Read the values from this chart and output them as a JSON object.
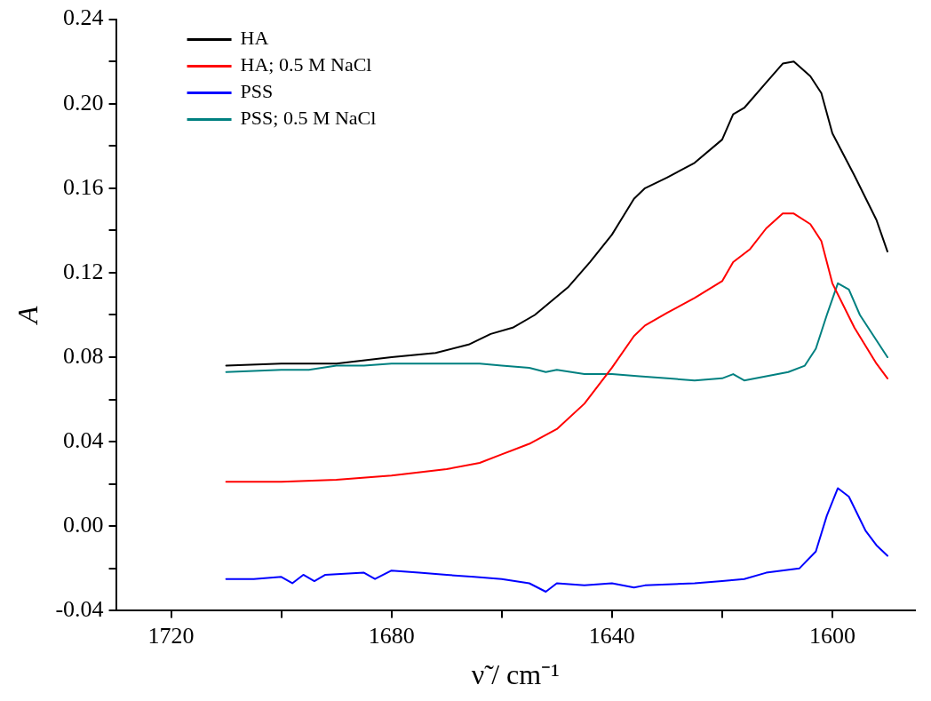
{
  "chart_data": {
    "type": "line",
    "xlabel": "ν̃ / cm⁻¹",
    "ylabel": "A",
    "xlim": [
      1730,
      1585
    ],
    "ylim": [
      -0.04,
      0.24
    ],
    "xticks": [
      1720,
      {
        "value": 1700,
        "label": null
      },
      1680,
      {
        "value": 1660,
        "label": null
      },
      1640,
      {
        "value": 1620,
        "label": null
      },
      1600
    ],
    "yticks": [
      {
        "value": -0.04,
        "label": "-0.04"
      },
      {
        "value": -0.02,
        "label": null
      },
      {
        "value": 0,
        "label": "0.00"
      },
      {
        "value": 0.02,
        "label": null
      },
      {
        "value": 0.04,
        "label": "0.04"
      },
      {
        "value": 0.06,
        "label": null
      },
      {
        "value": 0.08,
        "label": "0.08"
      },
      {
        "value": 0.1,
        "label": null
      },
      {
        "value": 0.12,
        "label": "0.12"
      },
      {
        "value": 0.14,
        "label": null
      },
      {
        "value": 0.16,
        "label": "0.16"
      },
      {
        "value": 0.18,
        "label": null
      },
      {
        "value": 0.2,
        "label": "0.20"
      },
      {
        "value": 0.22,
        "label": null
      },
      {
        "value": 0.24,
        "label": "0.24"
      }
    ],
    "grid": false,
    "legend": "top left",
    "marker": "none",
    "line_style": "solid",
    "series": [
      {
        "name": "HA",
        "color": "#000000",
        "x": [
          1710,
          1700,
          1690,
          1680,
          1672,
          1666,
          1662,
          1658,
          1654,
          1648,
          1644,
          1640,
          1636,
          1634,
          1630,
          1625,
          1620,
          1618,
          1616,
          1612,
          1609,
          1607,
          1604,
          1602,
          1600,
          1596,
          1592,
          1590
        ],
        "values": [
          0.076,
          0.077,
          0.077,
          0.08,
          0.082,
          0.086,
          0.091,
          0.094,
          0.1,
          0.113,
          0.125,
          0.138,
          0.155,
          0.16,
          0.165,
          0.172,
          0.183,
          0.195,
          0.198,
          0.21,
          0.219,
          0.22,
          0.213,
          0.205,
          0.186,
          0.166,
          0.145,
          0.13
        ]
      },
      {
        "name": "HA; 0.5 M NaCl",
        "color": "#ff0000",
        "x": [
          1710,
          1700,
          1690,
          1680,
          1670,
          1664,
          1660,
          1655,
          1650,
          1645,
          1640,
          1636,
          1634,
          1630,
          1625,
          1620,
          1618,
          1615,
          1612,
          1609,
          1607,
          1604,
          1602,
          1600,
          1596,
          1592,
          1590
        ],
        "values": [
          0.021,
          0.021,
          0.022,
          0.024,
          0.027,
          0.03,
          0.034,
          0.039,
          0.046,
          0.058,
          0.075,
          0.09,
          0.095,
          0.101,
          0.108,
          0.116,
          0.125,
          0.131,
          0.141,
          0.148,
          0.148,
          0.143,
          0.135,
          0.115,
          0.094,
          0.077,
          0.07
        ]
      },
      {
        "name": "PSS",
        "color": "#0000ff",
        "x": [
          1710,
          1705,
          1700,
          1698,
          1696,
          1694,
          1692,
          1685,
          1683,
          1680,
          1675,
          1670,
          1665,
          1660,
          1655,
          1652,
          1650,
          1645,
          1640,
          1636,
          1634,
          1625,
          1620,
          1616,
          1612,
          1606,
          1603,
          1601,
          1599,
          1597,
          1594,
          1592,
          1590
        ],
        "values": [
          -0.025,
          -0.025,
          -0.024,
          -0.027,
          -0.023,
          -0.026,
          -0.023,
          -0.022,
          -0.025,
          -0.021,
          -0.022,
          -0.023,
          -0.024,
          -0.025,
          -0.027,
          -0.031,
          -0.027,
          -0.028,
          -0.027,
          -0.029,
          -0.028,
          -0.027,
          -0.026,
          -0.025,
          -0.022,
          -0.02,
          -0.012,
          0.005,
          0.018,
          0.014,
          -0.002,
          -0.009,
          -0.014
        ]
      },
      {
        "name": "PSS; 0.5 M NaCl",
        "color": "#008080",
        "x": [
          1710,
          1700,
          1695,
          1690,
          1685,
          1680,
          1670,
          1664,
          1660,
          1655,
          1652,
          1650,
          1645,
          1640,
          1635,
          1630,
          1625,
          1620,
          1618,
          1616,
          1612,
          1608,
          1605,
          1603,
          1601,
          1599,
          1597,
          1595,
          1592,
          1590
        ],
        "values": [
          0.073,
          0.074,
          0.074,
          0.076,
          0.076,
          0.077,
          0.077,
          0.077,
          0.076,
          0.075,
          0.073,
          0.074,
          0.072,
          0.072,
          0.071,
          0.07,
          0.069,
          0.07,
          0.072,
          0.069,
          0.071,
          0.073,
          0.076,
          0.084,
          0.1,
          0.115,
          0.112,
          0.1,
          0.088,
          0.08
        ]
      }
    ]
  }
}
